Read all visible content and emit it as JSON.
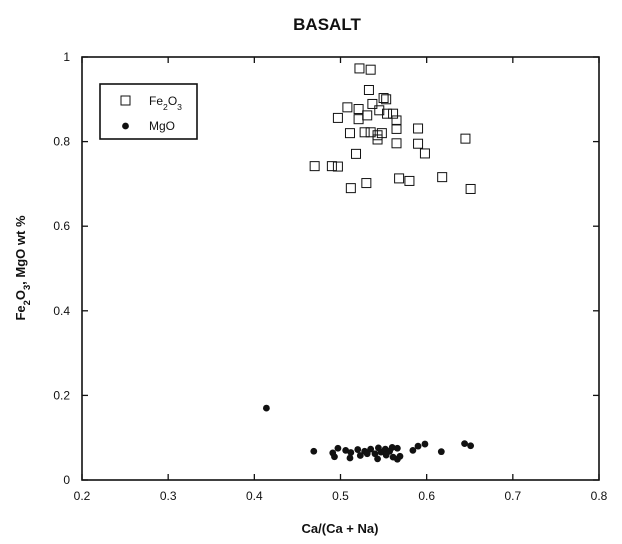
{
  "chart_data": {
    "type": "scatter",
    "title": "BASALT",
    "xlabel": "Ca/(Ca + Na)",
    "ylabel_parts": [
      "Fe",
      "2",
      "O",
      "3",
      ",  MgO  wt %"
    ],
    "xlim": [
      0.2,
      0.8
    ],
    "ylim": [
      0,
      1
    ],
    "xticks": [
      0.2,
      0.3,
      0.4,
      0.5,
      0.6,
      0.7,
      0.8
    ],
    "yticks": [
      0,
      0.2,
      0.4,
      0.6,
      0.8,
      1
    ],
    "xtick_labels": [
      "0.2",
      "0.3",
      "0.4",
      "0.5",
      "0.6",
      "0.7",
      "0.8"
    ],
    "ytick_labels": [
      "0",
      "0.2",
      "0.4",
      "0.6",
      "0.8",
      "1"
    ],
    "grid": false,
    "legend_position": "top-left",
    "series": [
      {
        "name": "Fe2O3",
        "label_parts": [
          "Fe",
          "2",
          "O",
          "3"
        ],
        "marker": "open-square",
        "color": "#111111",
        "points": [
          [
            0.522,
            0.973
          ],
          [
            0.535,
            0.97
          ],
          [
            0.533,
            0.922
          ],
          [
            0.55,
            0.903
          ],
          [
            0.553,
            0.9
          ],
          [
            0.537,
            0.889
          ],
          [
            0.508,
            0.881
          ],
          [
            0.521,
            0.877
          ],
          [
            0.545,
            0.874
          ],
          [
            0.554,
            0.866
          ],
          [
            0.561,
            0.866
          ],
          [
            0.531,
            0.862
          ],
          [
            0.497,
            0.856
          ],
          [
            0.521,
            0.853
          ],
          [
            0.565,
            0.85
          ],
          [
            0.59,
            0.831
          ],
          [
            0.565,
            0.83
          ],
          [
            0.528,
            0.822
          ],
          [
            0.535,
            0.822
          ],
          [
            0.511,
            0.82
          ],
          [
            0.548,
            0.82
          ],
          [
            0.543,
            0.815
          ],
          [
            0.645,
            0.807
          ],
          [
            0.543,
            0.805
          ],
          [
            0.565,
            0.796
          ],
          [
            0.59,
            0.795
          ],
          [
            0.518,
            0.771
          ],
          [
            0.598,
            0.772
          ],
          [
            0.47,
            0.742
          ],
          [
            0.49,
            0.742
          ],
          [
            0.497,
            0.741
          ],
          [
            0.618,
            0.716
          ],
          [
            0.568,
            0.713
          ],
          [
            0.58,
            0.707
          ],
          [
            0.53,
            0.702
          ],
          [
            0.512,
            0.69
          ],
          [
            0.651,
            0.688
          ]
        ]
      },
      {
        "name": "MgO",
        "label_parts": [
          "MgO"
        ],
        "marker": "filled-circle",
        "color": "#111111",
        "points": [
          [
            0.469,
            0.068
          ],
          [
            0.491,
            0.064
          ],
          [
            0.497,
            0.075
          ],
          [
            0.493,
            0.055
          ],
          [
            0.506,
            0.07
          ],
          [
            0.512,
            0.065
          ],
          [
            0.52,
            0.072
          ],
          [
            0.528,
            0.068
          ],
          [
            0.535,
            0.073
          ],
          [
            0.544,
            0.076
          ],
          [
            0.552,
            0.073
          ],
          [
            0.56,
            0.077
          ],
          [
            0.566,
            0.075
          ],
          [
            0.511,
            0.052
          ],
          [
            0.523,
            0.058
          ],
          [
            0.531,
            0.062
          ],
          [
            0.54,
            0.062
          ],
          [
            0.547,
            0.066
          ],
          [
            0.553,
            0.059
          ],
          [
            0.557,
            0.068
          ],
          [
            0.561,
            0.054
          ],
          [
            0.566,
            0.049
          ],
          [
            0.569,
            0.056
          ],
          [
            0.543,
            0.05
          ],
          [
            0.584,
            0.07
          ],
          [
            0.59,
            0.08
          ],
          [
            0.598,
            0.085
          ],
          [
            0.617,
            0.067
          ],
          [
            0.644,
            0.086
          ],
          [
            0.651,
            0.081
          ],
          [
            0.414,
            0.17
          ]
        ]
      }
    ]
  }
}
